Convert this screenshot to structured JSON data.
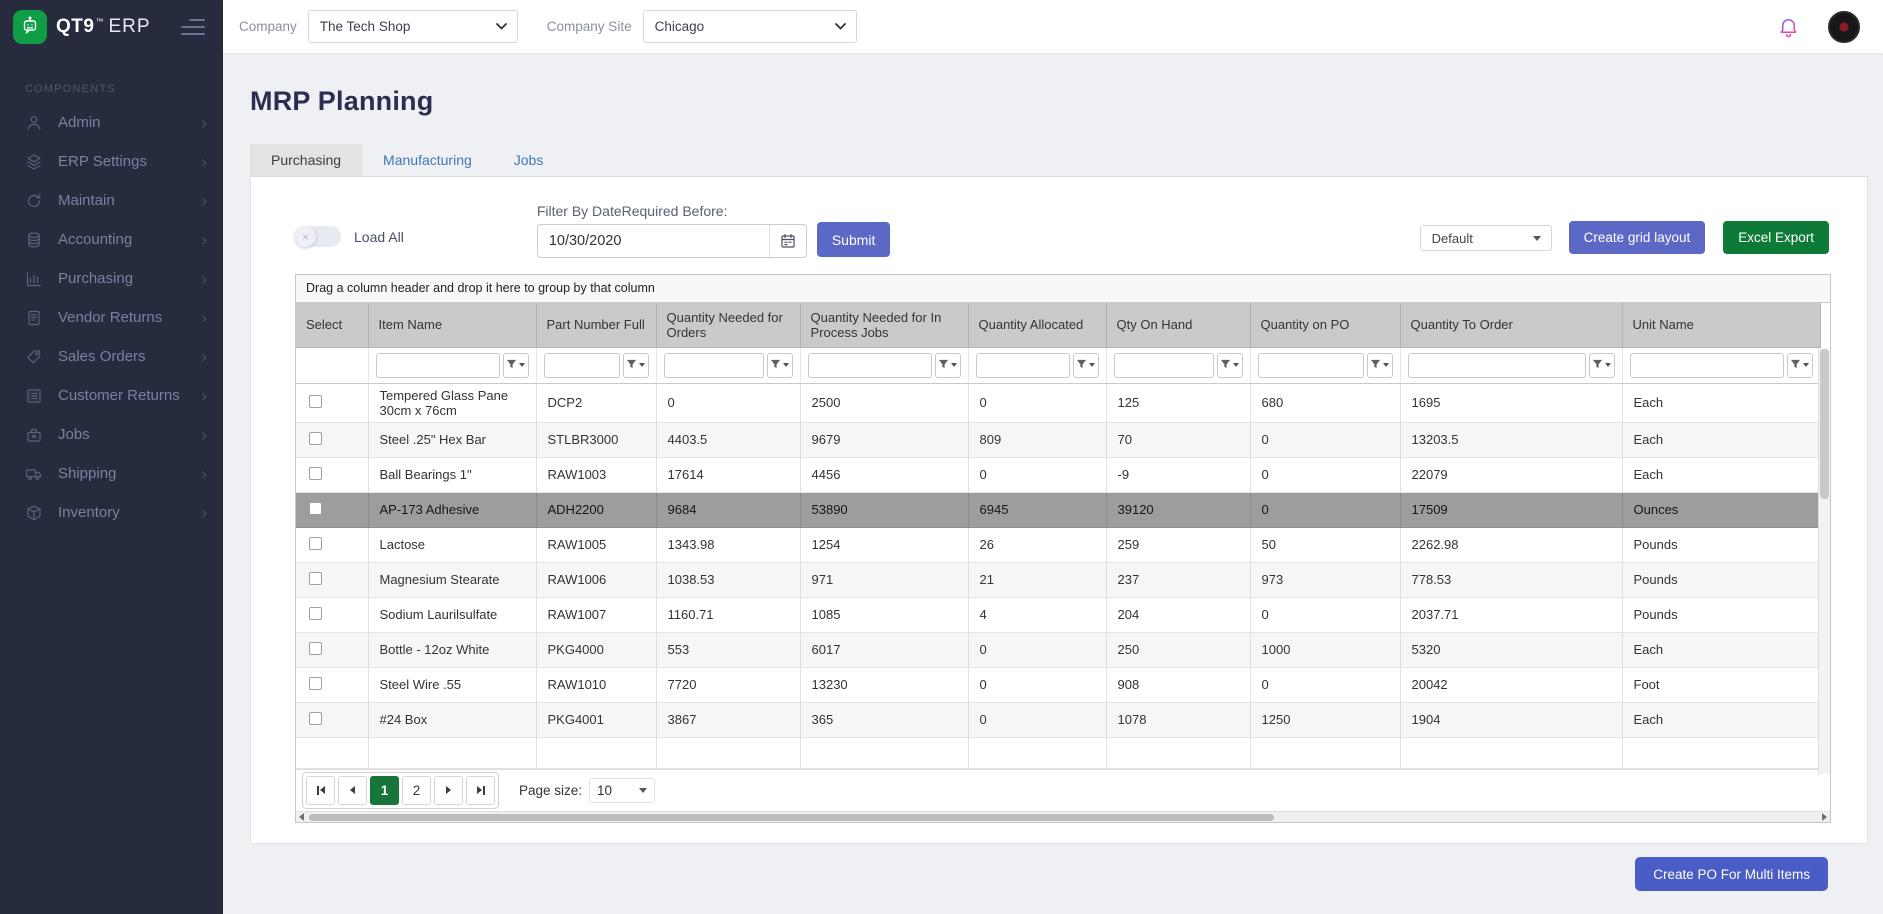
{
  "brand": {
    "name": "QT9",
    "tm": "™",
    "suffix": "ERP"
  },
  "topbar": {
    "company_label": "Company",
    "company_value": "The Tech Shop",
    "site_label": "Company Site",
    "site_value": "Chicago",
    "bell_icon": "bell-icon",
    "avatar": "user-avatar"
  },
  "sidebar": {
    "section_label": "COMPONENTS",
    "items": [
      {
        "label": "Admin",
        "icon": "user"
      },
      {
        "label": "ERP Settings",
        "icon": "layers"
      },
      {
        "label": "Maintain",
        "icon": "sync"
      },
      {
        "label": "Accounting",
        "icon": "coins"
      },
      {
        "label": "Purchasing",
        "icon": "chart"
      },
      {
        "label": "Vendor Returns",
        "icon": "file"
      },
      {
        "label": "Sales Orders",
        "icon": "tag"
      },
      {
        "label": "Customer Returns",
        "icon": "list"
      },
      {
        "label": "Jobs",
        "icon": "bag"
      },
      {
        "label": "Shipping",
        "icon": "truck"
      },
      {
        "label": "Inventory",
        "icon": "box"
      }
    ]
  },
  "page": {
    "title": "MRP Planning",
    "tabs": [
      {
        "label": "Purchasing",
        "active": true
      },
      {
        "label": "Manufacturing",
        "active": false
      },
      {
        "label": "Jobs",
        "active": false
      }
    ]
  },
  "filters": {
    "load_all_label": "Load All",
    "date_label": "Filter By DateRequired Before:",
    "date_value": "10/30/2020",
    "calendar_icon": "calendar-icon",
    "submit_label": "Submit",
    "layout_value": "Default",
    "create_grid_label": "Create grid layout",
    "excel_label": "Excel Export"
  },
  "grid": {
    "group_hint": "Drag a column header and drop it here to group by that column",
    "filter_icon": "funnel-icon",
    "columns": [
      "Select",
      "Item Name",
      "Part Number Full",
      "Quantity Needed for Orders",
      "Quantity Needed for In Process Jobs",
      "Quantity Allocated",
      "Qty On Hand",
      "Quantity on PO",
      "Quantity To Order",
      "Unit Name"
    ],
    "selected_row_index": 3,
    "rows": [
      [
        "Tempered Glass Pane 30cm x 76cm",
        "DCP2",
        "0",
        "2500",
        "0",
        "125",
        "680",
        "1695",
        "Each"
      ],
      [
        "Steel .25\" Hex Bar",
        "STLBR3000",
        "4403.5",
        "9679",
        "809",
        "70",
        "0",
        "13203.5",
        "Each"
      ],
      [
        "Ball Bearings 1\"",
        "RAW1003",
        "17614",
        "4456",
        "0",
        "-9",
        "0",
        "22079",
        "Each"
      ],
      [
        "AP-173 Adhesive",
        "ADH2200",
        "9684",
        "53890",
        "6945",
        "39120",
        "0",
        "17509",
        "Ounces"
      ],
      [
        "Lactose",
        "RAW1005",
        "1343.98",
        "1254",
        "26",
        "259",
        "50",
        "2262.98",
        "Pounds"
      ],
      [
        "Magnesium Stearate",
        "RAW1006",
        "1038.53",
        "971",
        "21",
        "237",
        "973",
        "778.53",
        "Pounds"
      ],
      [
        "Sodium Laurilsulfate",
        "RAW1007",
        "1160.71",
        "1085",
        "4",
        "204",
        "0",
        "2037.71",
        "Pounds"
      ],
      [
        "Bottle - 12oz White",
        "PKG4000",
        "553",
        "6017",
        "0",
        "250",
        "1000",
        "5320",
        "Each"
      ],
      [
        "Steel Wire .55",
        "RAW1010",
        "7720",
        "13230",
        "0",
        "908",
        "0",
        "20042",
        "Foot"
      ],
      [
        "#24 Box",
        "PKG4001",
        "3867",
        "365",
        "0",
        "1078",
        "1250",
        "1904",
        "Each"
      ]
    ]
  },
  "pagination": {
    "pages": [
      "1",
      "2"
    ],
    "active_page": "1",
    "page_size_label": "Page size:",
    "page_size_value": "10"
  },
  "footer": {
    "create_po_label": "Create PO For Multi Items"
  },
  "theme": {
    "accent": "#5b68c5",
    "accent2": "#4a5cc5",
    "excel_green": "#0e7a38",
    "pager_green": "#17753b",
    "sidebar_bg": "#272b3e",
    "selected_row": "#9d9d9d",
    "tab_link": "#4377b8",
    "logo_green": "#0f9d45"
  }
}
